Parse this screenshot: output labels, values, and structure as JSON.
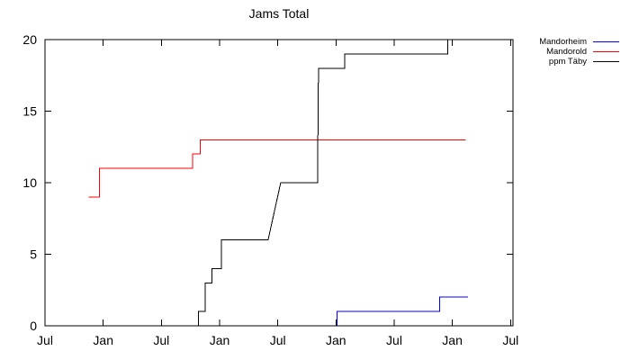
{
  "chart": {
    "title": "Jams Total"
  },
  "chart_data": {
    "type": "line",
    "title": "Jams Total",
    "background_color": "#ffffff",
    "axis_color": "#000000",
    "grid": false,
    "legend_position": "outside-right-top",
    "x_axis": {
      "tick_labels": [
        "Jul",
        "Jan",
        "Jul",
        "Jan",
        "Jul",
        "Jan",
        "Jul",
        "Jan",
        "Jul"
      ],
      "tick_months": [
        0,
        6,
        12,
        18,
        24,
        30,
        36,
        42,
        48
      ],
      "domain_months": [
        0,
        48.25
      ],
      "note": "month offset from first Jul tick; years not labeled on axis"
    },
    "y_axis": {
      "ticks": [
        0,
        5,
        10,
        15,
        20
      ],
      "range": [
        0,
        20
      ],
      "tick_labels": [
        "0",
        "5",
        "10",
        "15",
        "20"
      ]
    },
    "series": [
      {
        "name": "Mandorheim",
        "color": "#0000ff",
        "points": [
          [
            30.1,
            0
          ],
          [
            30.1,
            1
          ],
          [
            40.7,
            1
          ],
          [
            40.7,
            2
          ],
          [
            43.6,
            2
          ]
        ]
      },
      {
        "name": "Mandorold",
        "color": "#ff0000",
        "points": [
          [
            4.5,
            9
          ],
          [
            5.6,
            9
          ],
          [
            5.6,
            11
          ],
          [
            15.2,
            11
          ],
          [
            15.2,
            12
          ],
          [
            16.0,
            12
          ],
          [
            16.0,
            13
          ],
          [
            43.4,
            13
          ]
        ]
      },
      {
        "name": "ppm Täby",
        "color": "#000000",
        "points": [
          [
            15.8,
            0
          ],
          [
            15.8,
            1
          ],
          [
            16.5,
            1
          ],
          [
            16.5,
            3
          ],
          [
            17.2,
            3
          ],
          [
            17.2,
            4
          ],
          [
            18.2,
            4
          ],
          [
            18.2,
            6
          ],
          [
            23.0,
            6
          ],
          [
            24.3,
            10
          ],
          [
            28.1,
            10
          ],
          [
            28.2,
            18
          ],
          [
            30.9,
            18
          ],
          [
            30.9,
            19
          ],
          [
            41.5,
            19
          ],
          [
            41.5,
            20
          ],
          [
            43.6,
            20
          ]
        ]
      }
    ]
  }
}
